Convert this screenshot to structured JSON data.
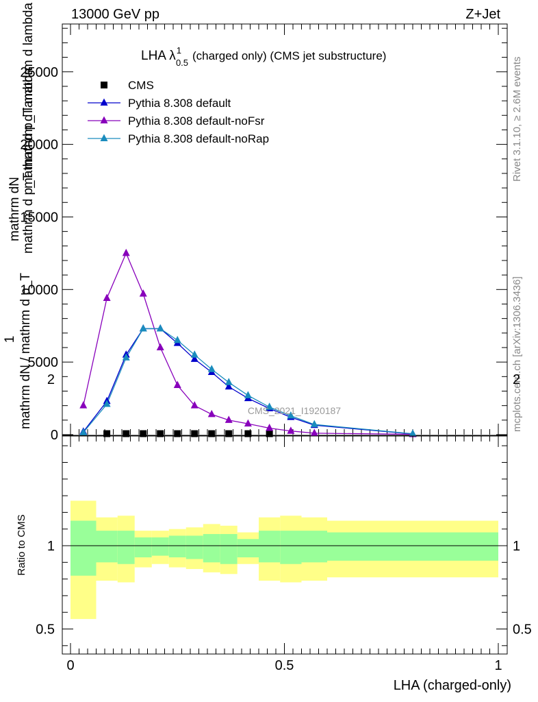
{
  "header": {
    "energy_label": "13000 GeV pp",
    "process_label": "Z+Jet"
  },
  "side_labels": {
    "rivet": "Rivet 3.1.10, ≥ 2.6M events",
    "mcplots": "mcplots.cern.ch [arXiv:1306.3436]"
  },
  "chart_data": [
    {
      "type": "line",
      "title_main": "LHA λ",
      "title_sup": "1",
      "title_sub": "0.5",
      "title_rest": "(charged only) (CMS jet substructure)",
      "ylabel_lines": [
        "mathrm dN",
        "mathrm d p_T mathrm d lambda",
        "mathrm d p_T mathrm d lambda",
        "1",
        "mathrm dN / mathrm d p_T"
      ],
      "ylabel_full": "1 / mathrm dN / mathrm d p_T  mathrm dN / mathrm d p_T mathrm d lambda",
      "watermark": "CMS_2021_I1920187",
      "xlim": [
        0,
        1
      ],
      "ylim": [
        0,
        28000
      ],
      "yticks": [
        0,
        5000,
        10000,
        15000,
        20000,
        25000
      ],
      "ytick_labels": [
        "0",
        "5000",
        "10000",
        "15000",
        "20000",
        "25000"
      ],
      "grid": false,
      "legend_position": "top-left",
      "series": [
        {
          "name": "CMS",
          "marker": "square",
          "color": "#000000",
          "x": [
            0.085,
            0.13,
            0.17,
            0.21,
            0.25,
            0.29,
            0.33,
            0.37,
            0.415,
            0.465
          ],
          "y": [
            20,
            20,
            20,
            20,
            20,
            20,
            20,
            20,
            20,
            20
          ]
        },
        {
          "name": "Pythia 8.308 default",
          "marker": "triangle",
          "color": "#0000cc",
          "x": [
            0.03,
            0.085,
            0.13,
            0.17,
            0.21,
            0.25,
            0.29,
            0.33,
            0.37,
            0.415,
            0.465,
            0.515,
            0.57,
            0.8
          ],
          "y": [
            200,
            2300,
            5500,
            7300,
            7300,
            6300,
            5200,
            4300,
            3300,
            2500,
            1800,
            1200,
            650,
            50
          ]
        },
        {
          "name": "Pythia 8.308 default-noFsr",
          "marker": "triangle",
          "color": "#8800bb",
          "x": [
            0.03,
            0.085,
            0.13,
            0.17,
            0.21,
            0.25,
            0.29,
            0.33,
            0.37,
            0.415,
            0.465,
            0.515,
            0.57,
            0.8
          ],
          "y": [
            2000,
            9400,
            12500,
            9700,
            6000,
            3400,
            2000,
            1400,
            1000,
            750,
            450,
            250,
            100,
            20
          ]
        },
        {
          "name": "Pythia 8.308 default-noRap",
          "marker": "triangle",
          "color": "#1a8cbd",
          "x": [
            0.03,
            0.085,
            0.13,
            0.17,
            0.21,
            0.25,
            0.29,
            0.33,
            0.37,
            0.415,
            0.465,
            0.515,
            0.57,
            0.8
          ],
          "y": [
            150,
            2100,
            5300,
            7300,
            7300,
            6500,
            5500,
            4500,
            3600,
            2700,
            1900,
            1300,
            700,
            60
          ]
        }
      ]
    },
    {
      "type": "area",
      "ylabel": "Ratio to CMS",
      "xlabel": "LHA (charged-only)",
      "xlim": [
        0,
        1
      ],
      "ylim": [
        0.35,
        2.3
      ],
      "xticks": [
        0,
        0.5,
        1
      ],
      "xtick_labels": [
        "0",
        "0.5",
        "1"
      ],
      "yticks": [
        0.5,
        1,
        2
      ],
      "ytick_labels": [
        "0.5",
        "1",
        "2"
      ],
      "reference_line": 1,
      "bands": {
        "bin_edges": [
          0,
          0.06,
          0.11,
          0.15,
          0.19,
          0.23,
          0.27,
          0.31,
          0.35,
          0.39,
          0.44,
          0.49,
          0.54,
          0.6,
          1.0
        ],
        "inner": {
          "color": "#99ff99",
          "lower": [
            0.82,
            0.9,
            0.89,
            0.93,
            0.94,
            0.93,
            0.92,
            0.9,
            0.89,
            0.93,
            0.9,
            0.89,
            0.9,
            0.91
          ],
          "upper": [
            1.15,
            1.09,
            1.09,
            1.05,
            1.05,
            1.06,
            1.06,
            1.07,
            1.07,
            1.04,
            1.09,
            1.09,
            1.09,
            1.08
          ]
        },
        "outer": {
          "color": "#ffff88",
          "lower": [
            0.56,
            0.79,
            0.78,
            0.87,
            0.89,
            0.87,
            0.86,
            0.84,
            0.83,
            0.89,
            0.79,
            0.78,
            0.79,
            0.81
          ],
          "upper": [
            1.27,
            1.17,
            1.18,
            1.09,
            1.09,
            1.1,
            1.11,
            1.13,
            1.12,
            1.08,
            1.17,
            1.18,
            1.17,
            1.15
          ]
        }
      }
    }
  ]
}
